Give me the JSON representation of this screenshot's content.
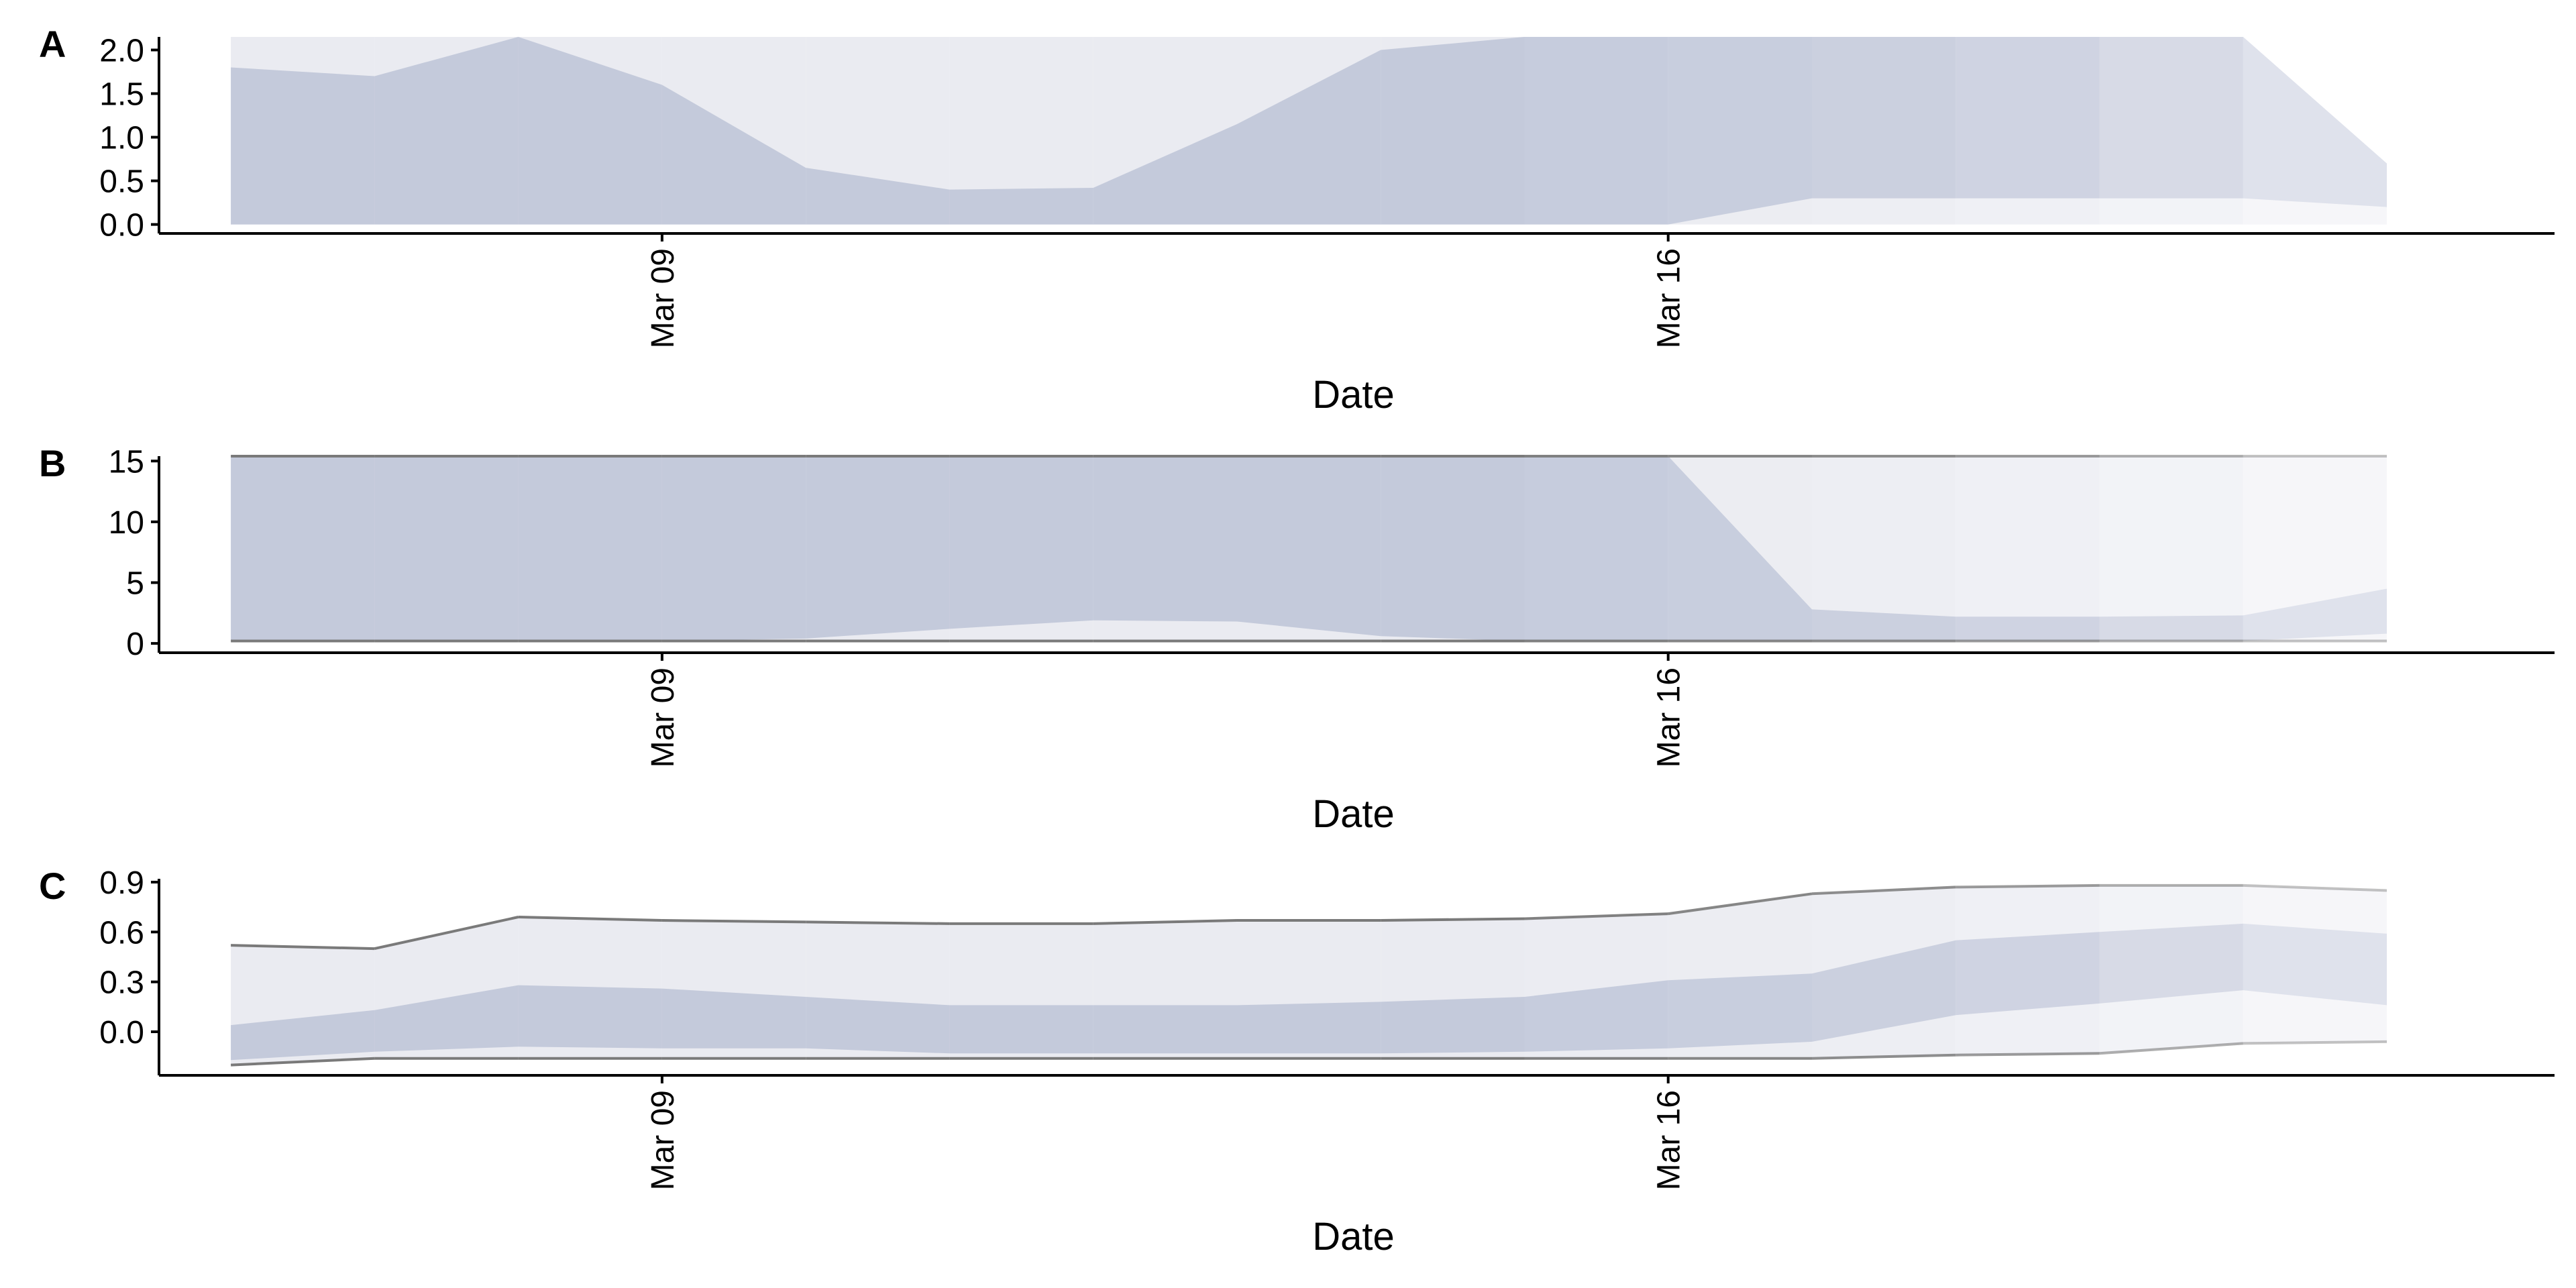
{
  "colors": {
    "band": "#c4cadb",
    "outer_band": "#eaebf1",
    "line": "#7a7a7a",
    "axis": "#000000"
  },
  "chart_data": [
    {
      "type": "area",
      "panel_label": "A",
      "xlabel": "Date",
      "ylabel": "",
      "ylim": [
        -0.08,
        2.15
      ],
      "yticks": [
        0.0,
        0.5,
        1.0,
        1.5,
        2.0
      ],
      "ytick_labels": [
        "0.0",
        "0.5",
        "1.0",
        "1.5",
        "2.0"
      ],
      "xlim": [
        "2020-03-05T12:00",
        "2020-03-22T04:00"
      ],
      "xticks": [
        "2020-03-09",
        "2020-03-16"
      ],
      "xtick_labels": [
        "Mar 09",
        "Mar 16"
      ],
      "x": [
        "2020-03-06",
        "2020-03-07",
        "2020-03-08",
        "2020-03-09",
        "2020-03-10",
        "2020-03-11",
        "2020-03-12",
        "2020-03-13",
        "2020-03-14",
        "2020-03-15",
        "2020-03-16",
        "2020-03-17",
        "2020-03-18",
        "2020-03-19",
        "2020-03-20",
        "2020-03-21"
      ],
      "band_opacity": [
        1,
        1,
        1,
        1,
        1,
        1,
        1,
        1,
        1,
        0.95,
        0.9,
        0.85,
        0.75,
        0.6,
        0.45,
        0.25
      ],
      "bands": [
        {
          "lower": [
            0,
            0,
            0,
            0,
            0,
            0,
            0,
            0,
            0,
            0,
            0,
            0,
            0,
            0,
            0,
            0
          ],
          "upper": [
            2.15,
            2.15,
            2.15,
            2.15,
            2.15,
            2.15,
            2.15,
            2.15,
            2.15,
            2.15,
            2.15,
            2.15,
            2.15,
            2.15,
            2.15,
            0.7
          ]
        },
        {
          "lower": [
            0,
            0,
            0,
            0,
            0,
            0,
            0,
            0,
            0,
            0,
            0,
            0.3,
            0.3,
            0.3,
            0.3,
            0.2
          ],
          "upper": [
            1.8,
            1.7,
            2.15,
            1.6,
            0.65,
            0.4,
            0.42,
            1.15,
            2.0,
            2.15,
            2.15,
            2.15,
            2.15,
            2.15,
            2.15,
            0.7
          ]
        }
      ],
      "lines": []
    },
    {
      "type": "area",
      "panel_label": "B",
      "xlabel": "Date",
      "ylabel": "",
      "ylim": [
        -0.6,
        15.4
      ],
      "yticks": [
        0,
        5,
        10,
        15
      ],
      "ytick_labels": [
        "0",
        "5",
        "10",
        "15"
      ],
      "xlim": [
        "2020-03-05T12:00",
        "2020-03-22T04:00"
      ],
      "xticks": [
        "2020-03-09",
        "2020-03-16"
      ],
      "xtick_labels": [
        "Mar 09",
        "Mar 16"
      ],
      "x": [
        "2020-03-06",
        "2020-03-07",
        "2020-03-08",
        "2020-03-09",
        "2020-03-10",
        "2020-03-11",
        "2020-03-12",
        "2020-03-13",
        "2020-03-14",
        "2020-03-15",
        "2020-03-16",
        "2020-03-17",
        "2020-03-18",
        "2020-03-19",
        "2020-03-20",
        "2020-03-21"
      ],
      "band_opacity": [
        1,
        1,
        1,
        1,
        1,
        1,
        1,
        1,
        1,
        0.95,
        0.9,
        0.85,
        0.75,
        0.6,
        0.45,
        0.25
      ],
      "bands": [
        {
          "lower": [
            0.2,
            0.2,
            0.2,
            0.2,
            0.2,
            0.2,
            0.2,
            0.2,
            0.2,
            0.2,
            0.2,
            0.2,
            0.2,
            0.2,
            0.2,
            0.2
          ],
          "upper": [
            15.4,
            15.4,
            15.4,
            15.4,
            15.4,
            15.4,
            15.4,
            15.4,
            15.4,
            15.4,
            15.4,
            15.4,
            15.4,
            15.4,
            15.4,
            15.4
          ]
        },
        {
          "lower": [
            0.2,
            0.2,
            0.2,
            0.2,
            0.4,
            1.2,
            1.9,
            1.8,
            0.6,
            0.2,
            0.2,
            0.2,
            0.2,
            0.2,
            0.2,
            0.8
          ],
          "upper": [
            15.4,
            15.4,
            15.4,
            15.4,
            15.4,
            15.4,
            15.4,
            15.4,
            15.4,
            15.4,
            15.4,
            2.8,
            2.2,
            2.2,
            2.3,
            4.5
          ]
        }
      ],
      "lines": [
        {
          "name": "",
          "values": [
            15.4,
            15.4,
            15.4,
            15.4,
            15.4,
            15.4,
            15.4,
            15.4,
            15.4,
            15.4,
            15.4,
            15.4,
            15.4,
            15.4,
            15.4,
            15.4
          ]
        },
        {
          "name": "",
          "values": [
            0.2,
            0.2,
            0.2,
            0.2,
            0.2,
            0.2,
            0.2,
            0.2,
            0.2,
            0.2,
            0.2,
            0.2,
            0.2,
            0.2,
            0.2,
            0.2
          ]
        }
      ]
    },
    {
      "type": "area",
      "panel_label": "C",
      "xlabel": "Date",
      "ylabel": "",
      "ylim": [
        -0.25,
        0.92
      ],
      "yticks": [
        0.0,
        0.3,
        0.6,
        0.9
      ],
      "ytick_labels": [
        "0.0",
        "0.3",
        "0.6",
        "0.9"
      ],
      "xlim": [
        "2020-03-05T12:00",
        "2020-03-22T04:00"
      ],
      "xticks": [
        "2020-03-09",
        "2020-03-16"
      ],
      "xtick_labels": [
        "Mar 09",
        "Mar 16"
      ],
      "x": [
        "2020-03-06",
        "2020-03-07",
        "2020-03-08",
        "2020-03-09",
        "2020-03-10",
        "2020-03-11",
        "2020-03-12",
        "2020-03-13",
        "2020-03-14",
        "2020-03-15",
        "2020-03-16",
        "2020-03-17",
        "2020-03-18",
        "2020-03-19",
        "2020-03-20",
        "2020-03-21"
      ],
      "band_opacity": [
        1,
        1,
        1,
        1,
        1,
        1,
        1,
        1,
        1,
        0.95,
        0.9,
        0.85,
        0.75,
        0.6,
        0.45,
        0.25
      ],
      "bands": [
        {
          "lower": [
            -0.2,
            -0.16,
            -0.16,
            -0.16,
            -0.16,
            -0.16,
            -0.16,
            -0.16,
            -0.16,
            -0.16,
            -0.16,
            -0.16,
            -0.14,
            -0.13,
            -0.07,
            -0.06
          ],
          "upper": [
            0.52,
            0.5,
            0.69,
            0.67,
            0.66,
            0.65,
            0.65,
            0.67,
            0.67,
            0.68,
            0.71,
            0.83,
            0.87,
            0.88,
            0.88,
            0.85
          ]
        },
        {
          "lower": [
            -0.17,
            -0.12,
            -0.09,
            -0.1,
            -0.1,
            -0.13,
            -0.13,
            -0.13,
            -0.13,
            -0.12,
            -0.1,
            -0.06,
            0.1,
            0.17,
            0.25,
            0.16
          ],
          "upper": [
            0.04,
            0.13,
            0.28,
            0.26,
            0.21,
            0.16,
            0.16,
            0.16,
            0.18,
            0.21,
            0.31,
            0.35,
            0.55,
            0.6,
            0.65,
            0.59
          ]
        }
      ],
      "lines": [
        {
          "name": "",
          "values": [
            0.52,
            0.5,
            0.69,
            0.67,
            0.66,
            0.65,
            0.65,
            0.67,
            0.67,
            0.68,
            0.71,
            0.83,
            0.87,
            0.88,
            0.88,
            0.85
          ]
        },
        {
          "name": "",
          "values": [
            -0.2,
            -0.16,
            -0.16,
            -0.16,
            -0.16,
            -0.16,
            -0.16,
            -0.16,
            -0.16,
            -0.16,
            -0.16,
            -0.16,
            -0.14,
            -0.13,
            -0.07,
            -0.06
          ]
        }
      ]
    }
  ]
}
